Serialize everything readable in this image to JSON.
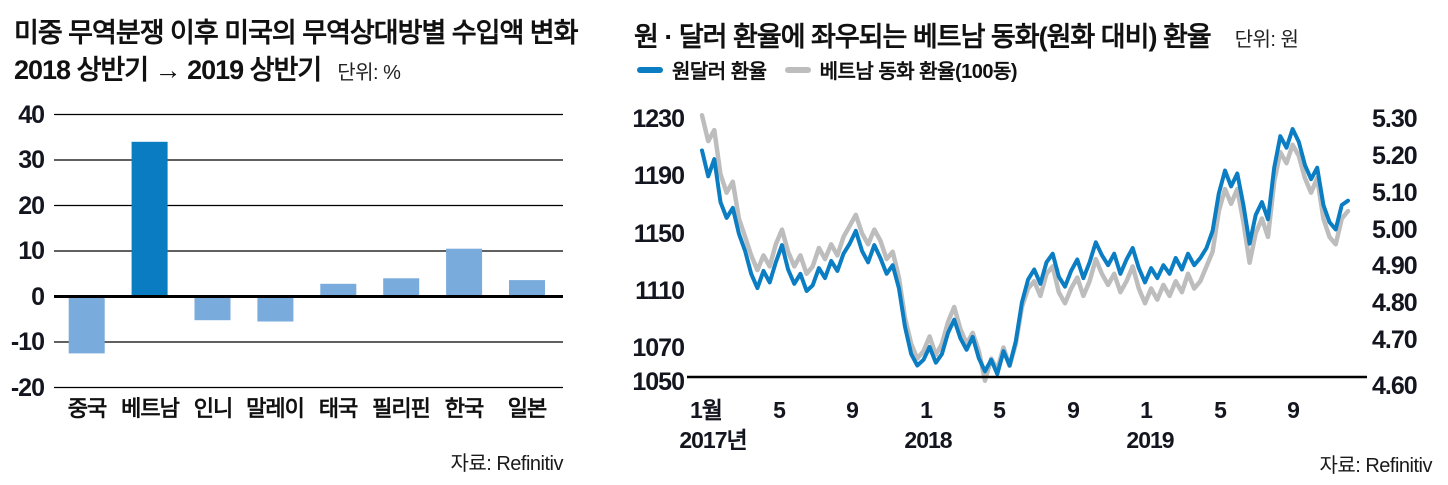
{
  "background": "#ffffff",
  "chart_data": [
    {
      "type": "bar",
      "title": "미중 무역분쟁 이후 미국의 무역상대방별 수입액 변화",
      "subtitle": "2018 상반기 → 2019 상반기",
      "unit": "단위: %",
      "source": "자료: Refinitiv",
      "categories": [
        "중국",
        "베트남",
        "인니",
        "말레이",
        "태국",
        "필리핀",
        "한국",
        "일본"
      ],
      "values": [
        -12.5,
        34,
        -5.2,
        -5.5,
        2.8,
        4,
        10.5,
        3.6
      ],
      "highlight_index": 1,
      "bar_color": "#79abdc",
      "highlight_color": "#0a7cc2",
      "grid_color": "#000000",
      "yticks": [
        40,
        30,
        20,
        10,
        0,
        -10,
        -20
      ],
      "ylim": [
        -20,
        40
      ],
      "grid": true
    },
    {
      "type": "line",
      "title": "원 · 달러 환율에 좌우되는 베트남 동화(원화 대비) 환율",
      "unit": "단위: 원",
      "source": "자료: Refinitiv",
      "legend_position": "top",
      "x_range": [
        "2017-01",
        "2019-12"
      ],
      "x_tick_labels": [
        "1월",
        "5",
        "9",
        "1",
        "5",
        "9",
        "1",
        "5",
        "9"
      ],
      "x_year_labels": [
        "2017년",
        "2018",
        "2019"
      ],
      "y_left": {
        "ticks": [
          1230,
          1190,
          1150,
          1110,
          1070,
          1050
        ],
        "range": [
          1050,
          1230
        ]
      },
      "y_right": {
        "ticks": [
          "5.30",
          "5.20",
          "5.10",
          "5.00",
          "4.90",
          "4.80",
          "4.70",
          "4.60"
        ],
        "range": [
          4.6,
          5.3
        ]
      },
      "series": [
        {
          "name": "원달러 환율",
          "color": "#0b7dc3",
          "axis": "left",
          "values": [
            1208,
            1190,
            1202,
            1172,
            1161,
            1168,
            1150,
            1138,
            1122,
            1112,
            1124,
            1116,
            1130,
            1142,
            1125,
            1115,
            1122,
            1110,
            1114,
            1126,
            1119,
            1131,
            1124,
            1136,
            1143,
            1152,
            1138,
            1130,
            1142,
            1133,
            1122,
            1128,
            1112,
            1085,
            1066,
            1058,
            1062,
            1071,
            1060,
            1066,
            1081,
            1090,
            1077,
            1069,
            1078,
            1063,
            1054,
            1062,
            1052,
            1068,
            1058,
            1075,
            1102,
            1118,
            1125,
            1115,
            1130,
            1136,
            1120,
            1113,
            1124,
            1132,
            1119,
            1130,
            1144,
            1135,
            1128,
            1136,
            1122,
            1132,
            1140,
            1126,
            1116,
            1126,
            1119,
            1128,
            1122,
            1133,
            1125,
            1136,
            1128,
            1133,
            1140,
            1152,
            1178,
            1194,
            1183,
            1192,
            1170,
            1143,
            1163,
            1172,
            1160,
            1196,
            1218,
            1210,
            1223,
            1214,
            1198,
            1188,
            1196,
            1170,
            1158,
            1153,
            1170,
            1173
          ]
        },
        {
          "name": "베트남 동화 환율(100동)",
          "color": "#bdbdbd",
          "axis": "right",
          "values": [
            5.31,
            5.24,
            5.27,
            5.15,
            5.1,
            5.13,
            5.03,
            4.98,
            4.93,
            4.89,
            4.93,
            4.9,
            4.96,
            5.0,
            4.94,
            4.9,
            4.93,
            4.88,
            4.9,
            4.95,
            4.92,
            4.96,
            4.93,
            4.98,
            5.01,
            5.04,
            4.99,
            4.96,
            5.0,
            4.97,
            4.92,
            4.94,
            4.87,
            4.76,
            4.69,
            4.65,
            4.67,
            4.71,
            4.66,
            4.69,
            4.75,
            4.79,
            4.73,
            4.69,
            4.72,
            4.67,
            4.59,
            4.65,
            4.62,
            4.68,
            4.63,
            4.69,
            4.79,
            4.84,
            4.86,
            4.82,
            4.88,
            4.9,
            4.83,
            4.8,
            4.84,
            4.87,
            4.82,
            4.86,
            4.92,
            4.88,
            4.85,
            4.88,
            4.83,
            4.86,
            4.9,
            4.84,
            4.8,
            4.84,
            4.81,
            4.85,
            4.82,
            4.86,
            4.83,
            4.88,
            4.84,
            4.86,
            4.9,
            4.94,
            5.05,
            5.11,
            5.07,
            5.11,
            5.02,
            4.91,
            4.99,
            5.03,
            4.98,
            5.13,
            5.21,
            5.18,
            5.23,
            5.2,
            5.14,
            5.1,
            5.14,
            5.03,
            4.98,
            4.96,
            5.03,
            5.05
          ]
        }
      ]
    }
  ]
}
